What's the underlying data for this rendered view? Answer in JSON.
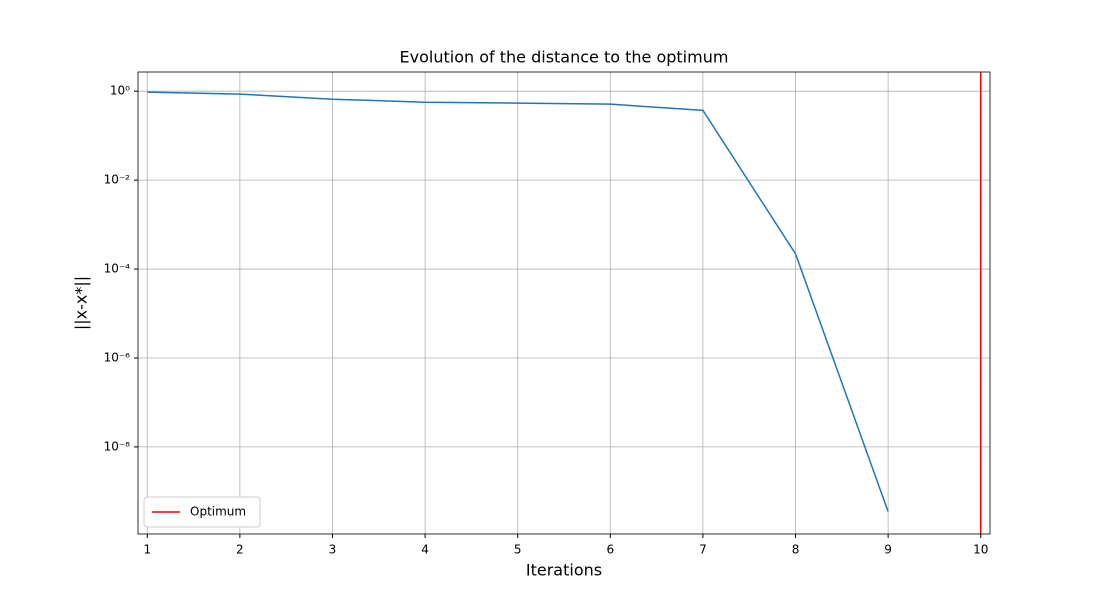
{
  "chart_data": {
    "type": "line",
    "title": "Evolution of the distance to the optimum",
    "xlabel": "Iterations",
    "ylabel": "||x-x*||",
    "x": [
      1,
      2,
      3,
      4,
      5,
      6,
      7,
      8,
      9
    ],
    "series": [
      {
        "color": "#1f77b4",
        "values": [
          0.95,
          0.86,
          0.66,
          0.565,
          0.54,
          0.51,
          0.37,
          0.00022,
          3.5e-10
        ]
      }
    ],
    "vlines": [
      {
        "x": 10,
        "name": "Optimum",
        "color": "#ff0000"
      }
    ],
    "xlim": [
      0.9,
      10.1
    ],
    "xticks": [
      1,
      2,
      3,
      4,
      5,
      6,
      7,
      8,
      9,
      10
    ],
    "ylim": [
      1.1e-10,
      2.7
    ],
    "yscale": "log",
    "yticks": [
      {
        "value": 1,
        "label": "10⁰"
      },
      {
        "value": 0.01,
        "label": "10⁻²"
      },
      {
        "value": 0.0001,
        "label": "10⁻⁴"
      },
      {
        "value": 1e-06,
        "label": "10⁻⁶"
      },
      {
        "value": 1e-08,
        "label": "10⁻⁸"
      }
    ],
    "grid": true,
    "legend_loc": "lower left"
  }
}
